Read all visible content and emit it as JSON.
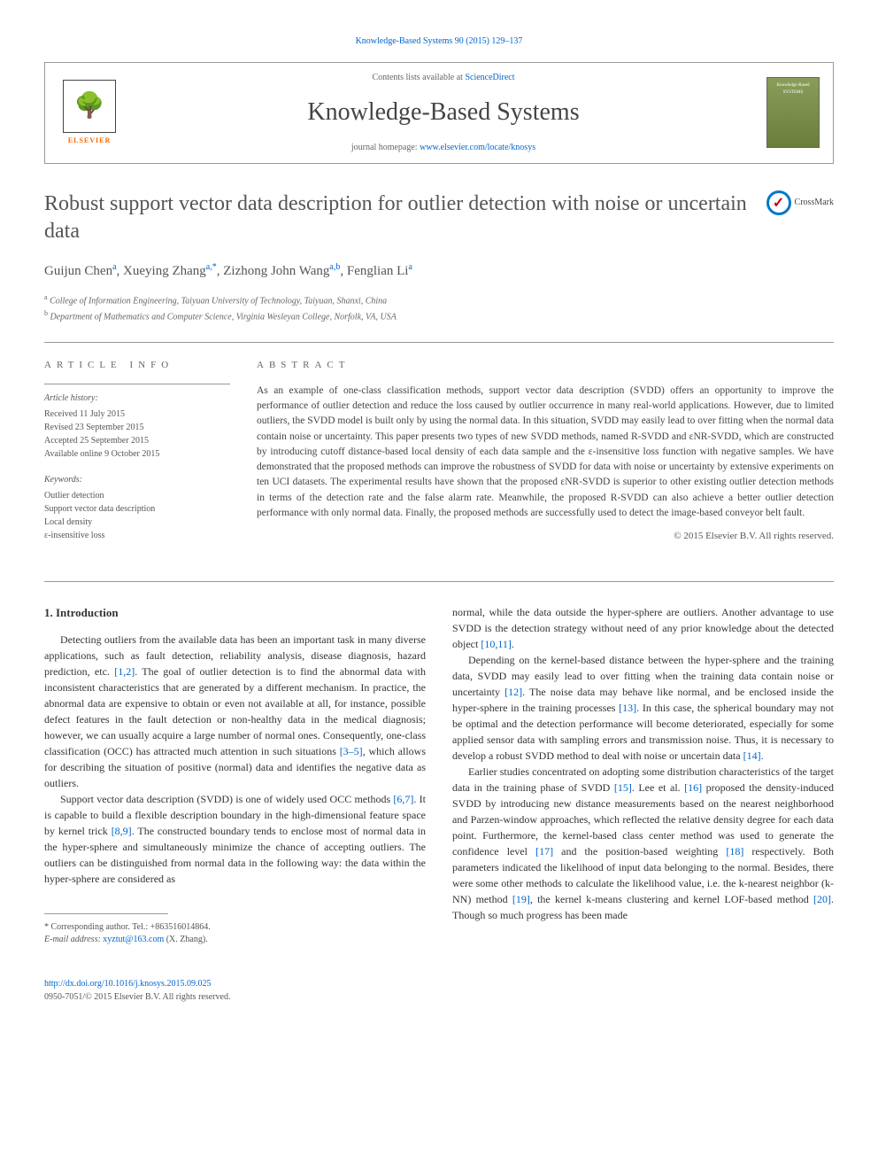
{
  "running_header": "Knowledge-Based Systems 90 (2015) 129–137",
  "masthead": {
    "contents_prefix": "Contents lists available at ",
    "contents_link": "ScienceDirect",
    "journal_name": "Knowledge-Based Systems",
    "homepage_prefix": "journal homepage: ",
    "homepage_link": "www.elsevier.com/locate/knosys",
    "elsevier_label": "ELSEVIER",
    "cover_text": "Knowledge-Based SYSTEMS"
  },
  "article": {
    "title": "Robust support vector data description for outlier detection with noise or uncertain data",
    "crossmark_label": "CrossMark",
    "authors_html": "Guijun Chen<sup class='affm'>a</sup>, Xueying Zhang<sup class='affm'>a,*</sup>, Zizhong John Wang<sup class='affm'>a,b</sup>, Fenglian Li<sup class='affm'>a</sup>",
    "affiliations": [
      {
        "marker": "a",
        "text": "College of Information Engineering, Taiyuan University of Technology, Taiyuan, Shanxi, China"
      },
      {
        "marker": "b",
        "text": "Department of Mathematics and Computer Science, Virginia Wesleyan College, Norfolk, VA, USA"
      }
    ]
  },
  "info": {
    "heading": "ARTICLE INFO",
    "history_label": "Article history:",
    "history": [
      "Received 11 July 2015",
      "Revised 23 September 2015",
      "Accepted 25 September 2015",
      "Available online 9 October 2015"
    ],
    "keywords_label": "Keywords:",
    "keywords": [
      "Outlier detection",
      "Support vector data description",
      "Local density",
      "ε-insensitive loss"
    ]
  },
  "abstract": {
    "heading": "ABSTRACT",
    "text": "As an example of one-class classification methods, support vector data description (SVDD) offers an opportunity to improve the performance of outlier detection and reduce the loss caused by outlier occurrence in many real-world applications. However, due to limited outliers, the SVDD model is built only by using the normal data. In this situation, SVDD may easily lead to over fitting when the normal data contain noise or uncertainty. This paper presents two types of new SVDD methods, named R-SVDD and εNR-SVDD, which are constructed by introducing cutoff distance-based local density of each data sample and the ε-insensitive loss function with negative samples. We have demonstrated that the proposed methods can improve the robustness of SVDD for data with noise or uncertainty by extensive experiments on ten UCI datasets. The experimental results have shown that the proposed εNR-SVDD is superior to other existing outlier detection methods in terms of the detection rate and the false alarm rate. Meanwhile, the proposed R-SVDD can also achieve a better outlier detection performance with only normal data. Finally, the proposed methods are successfully used to detect the image-based conveyor belt fault.",
    "copyright": "© 2015 Elsevier B.V. All rights reserved."
  },
  "body": {
    "section1_heading": "1. Introduction",
    "col1": [
      "Detecting outliers from the available data has been an important task in many diverse applications, such as fault detection, reliability analysis, disease diagnosis, hazard prediction, etc. <span class='ref'>[1,2]</span>. The goal of outlier detection is to find the abnormal data with inconsistent characteristics that are generated by a different mechanism. In practice, the abnormal data are expensive to obtain or even not available at all, for instance, possible defect features in the fault detection or non-healthy data in the medical diagnosis; however, we can usually acquire a large number of normal ones. Consequently, one-class classification (OCC) has attracted much attention in such situations <span class='ref'>[3–5]</span>, which allows for describing the situation of positive (normal) data and identifies the negative data as outliers.",
      "Support vector data description (SVDD) is one of widely used OCC methods <span class='ref'>[6,7]</span>. It is capable to build a flexible description boundary in the high-dimensional feature space by kernel trick <span class='ref'>[8,9]</span>. The constructed boundary tends to enclose most of normal data in the hyper-sphere and simultaneously minimize the chance of accepting outliers. The outliers can be distinguished from normal data in the following way: the data within the hyper-sphere are considered as"
    ],
    "col2": [
      "normal, while the data outside the hyper-sphere are outliers. Another advantage to use SVDD is the detection strategy without need of any prior knowledge about the detected object <span class='ref'>[10,11]</span>.",
      "Depending on the kernel-based distance between the hyper-sphere and the training data, SVDD may easily lead to over fitting when the training data contain noise or uncertainty <span class='ref'>[12]</span>. The noise data may behave like normal, and be enclosed inside the hyper-sphere in the training processes <span class='ref'>[13]</span>. In this case, the spherical boundary may not be optimal and the detection performance will become deteriorated, especially for some applied sensor data with sampling errors and transmission noise. Thus, it is necessary to develop a robust SVDD method to deal with noise or uncertain data <span class='ref'>[14]</span>.",
      "Earlier studies concentrated on adopting some distribution characteristics of the target data in the training phase of SVDD <span class='ref'>[15]</span>. Lee et al. <span class='ref'>[16]</span> proposed the density-induced SVDD by introducing new distance measurements based on the nearest neighborhood and Parzen-window approaches, which reflected the relative density degree for each data point. Furthermore, the kernel-based class center method was used to generate the confidence level <span class='ref'>[17]</span> and the position-based weighting <span class='ref'>[18]</span> respectively. Both parameters indicated the likelihood of input data belonging to the normal. Besides, there were some other methods to calculate the likelihood value, i.e. the k-nearest neighbor (k-NN) method <span class='ref'>[19]</span>, the kernel k-means clustering and kernel LOF-based method <span class='ref'>[20]</span>. Though so much progress has been made"
    ]
  },
  "footnote": {
    "corresponding": "* Corresponding author. Tel.: +863516014864.",
    "email_label": "E-mail address: ",
    "email": "xyztut@163.com",
    "email_suffix": " (X. Zhang)."
  },
  "footer": {
    "doi": "http://dx.doi.org/10.1016/j.knosys.2015.09.025",
    "issn_line": "0950-7051/© 2015 Elsevier B.V. All rights reserved."
  }
}
